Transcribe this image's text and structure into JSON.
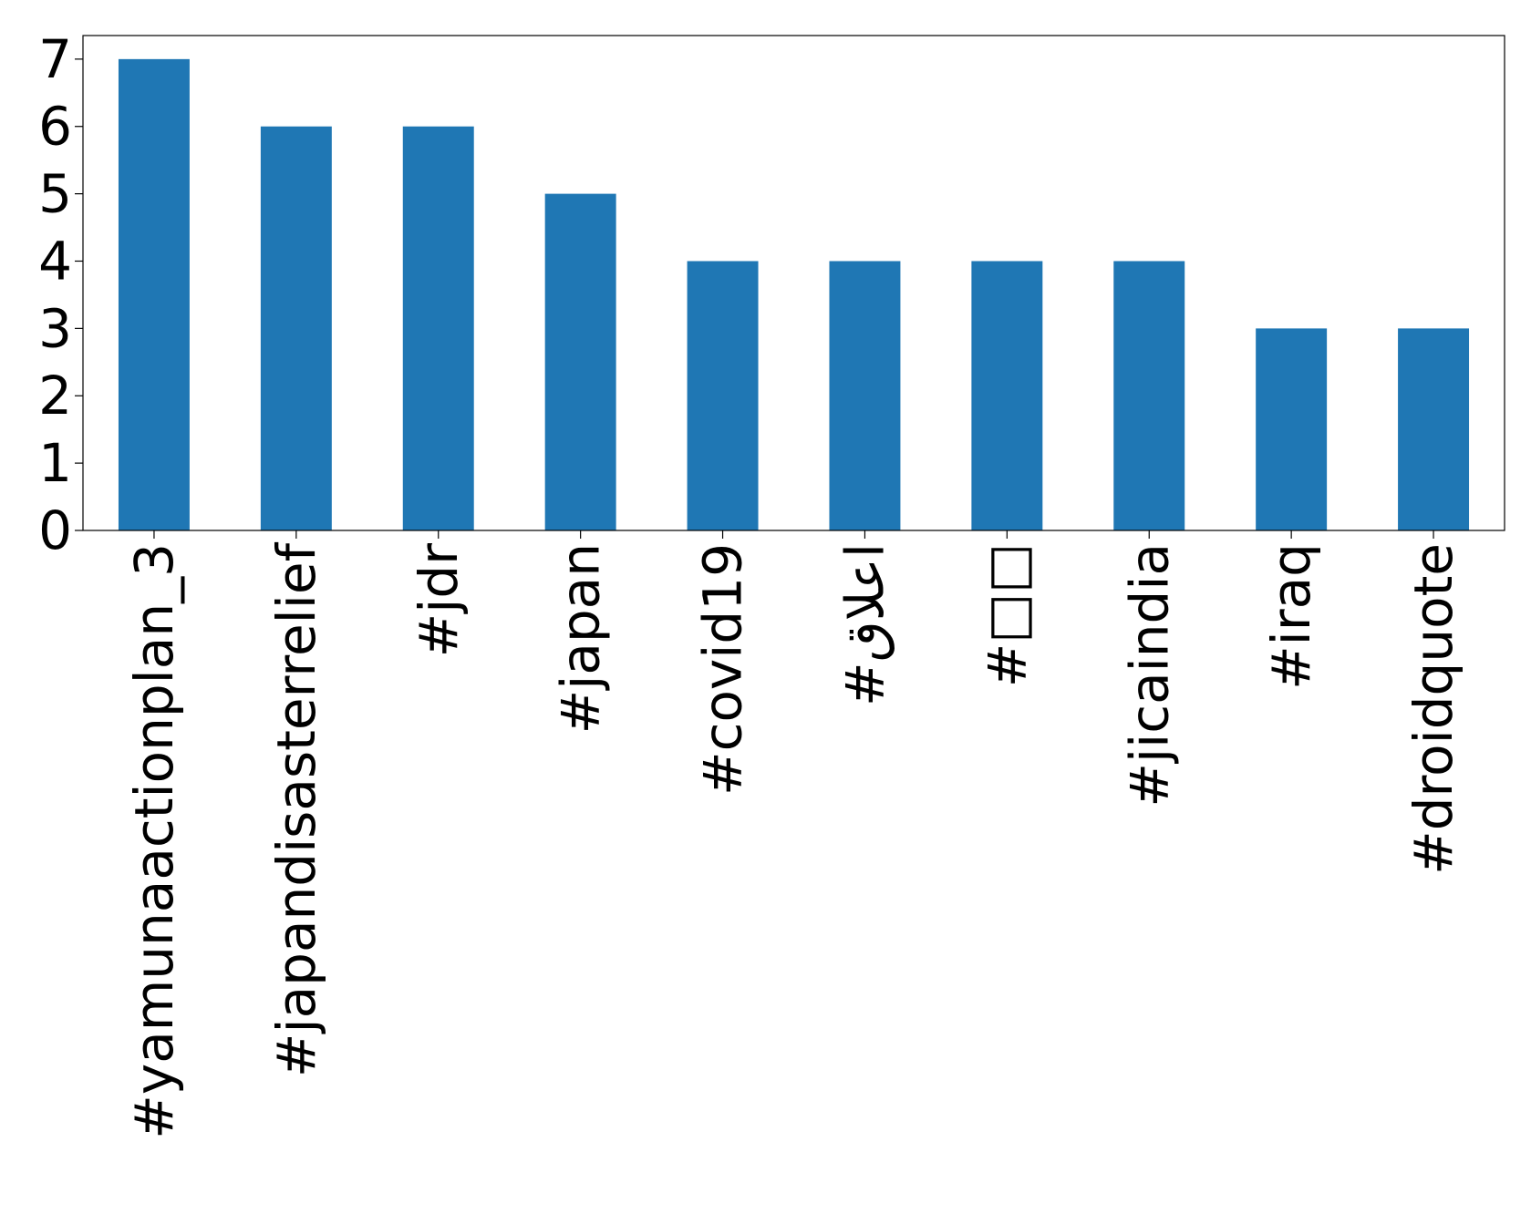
{
  "chart_data": {
    "type": "bar",
    "title": "",
    "xlabel": "",
    "ylabel": "",
    "categories": [
      "#yamunaactionplan_3",
      "#japandisasterrelief",
      "#jdr",
      "#japan",
      "#covid19",
      "#اعلاق",
      "#□□",
      "#jicaindia",
      "#iraq",
      "#droidquote"
    ],
    "values": [
      7,
      6,
      6,
      5,
      4,
      4,
      4,
      4,
      3,
      3
    ],
    "ylim": [
      0,
      7.35
    ],
    "yticks": [
      0,
      1,
      2,
      3,
      4,
      5,
      6,
      7
    ],
    "bar_color": "#1f77b4",
    "grid": false,
    "legend": "none"
  }
}
